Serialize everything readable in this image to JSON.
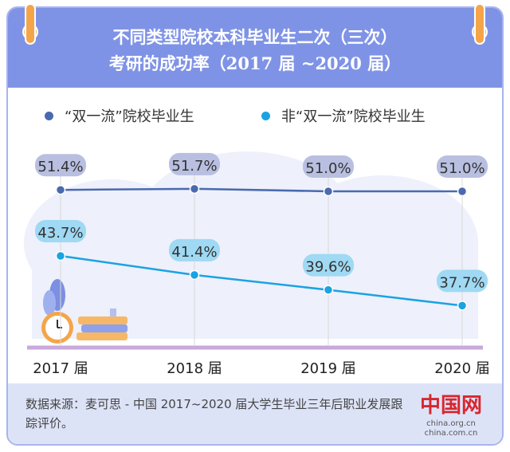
{
  "header": {
    "title_line1": "不同类型院校本科毕业生二次（三次）",
    "title_line2": "考研的成功率（2017 届 ~2020 届）"
  },
  "legend": {
    "series1_label": "“双一流”院校毕业生",
    "series2_label": "非“双一流”院校毕业生"
  },
  "footer": {
    "source_text": "数据来源：麦可思 - 中国 2017~2020 届大学生毕业三年后职业发展跟踪评价。",
    "logo_text": "中国网",
    "logo_url": "china.org.cn",
    "logo_url2": "china.com.cn"
  },
  "colors": {
    "header": "#7f93e6",
    "series1": "#4a6ab0",
    "series2": "#1aa3e3",
    "label1_bg": "#b9bfe0",
    "label2_bg": "#9fd9f3",
    "baseline": "#c9a9dc"
  },
  "chart_data": {
    "type": "line",
    "categories": [
      "2017 届",
      "2018 届",
      "2019 届",
      "2020 届"
    ],
    "series": [
      {
        "name": "“双一流”院校毕业生",
        "values": [
          51.4,
          51.7,
          51.0,
          51.0
        ],
        "labels": [
          "51.4%",
          "51.7%",
          "51.0%",
          "51.0%"
        ]
      },
      {
        "name": "非“双一流”院校毕业生",
        "values": [
          43.7,
          41.4,
          39.6,
          37.7
        ],
        "labels": [
          "43.7%",
          "41.4%",
          "39.6%",
          "37.7%"
        ]
      }
    ],
    "grid": false,
    "legend": "top"
  }
}
